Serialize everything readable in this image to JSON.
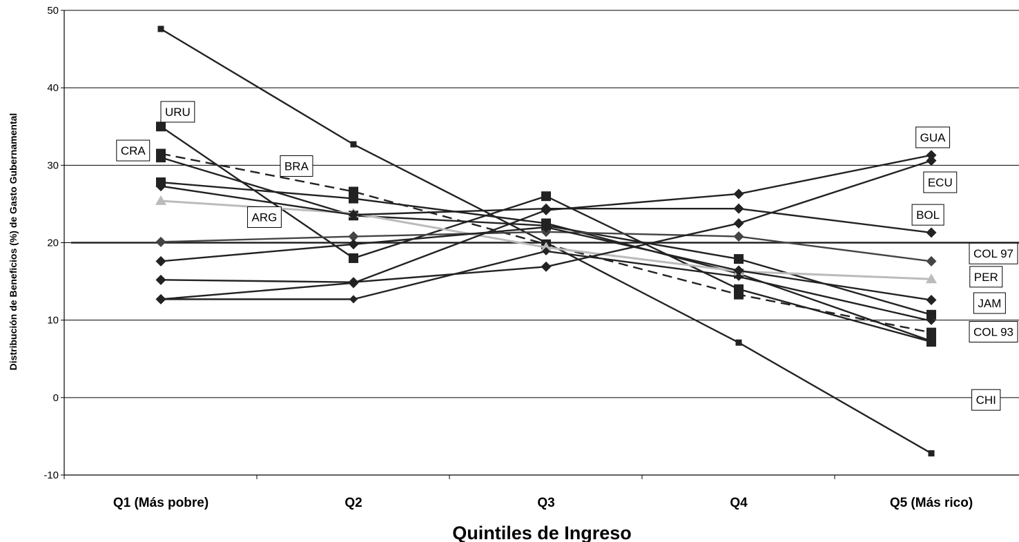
{
  "chart_data": {
    "type": "line",
    "title": "",
    "xlabel": "Quintiles de Ingreso",
    "ylabel": "Distribución de Beneficios (%) de Gasto Gubernamental",
    "categories": [
      "Q1 (Más pobre)",
      "Q2",
      "Q3",
      "Q4",
      "Q5 (Más rico)"
    ],
    "ylim": [
      -10,
      50
    ],
    "yticks": [
      -10,
      0,
      10,
      20,
      30,
      40,
      50
    ],
    "grid": true,
    "reference_line": 20,
    "series": [
      {
        "name": "CHI",
        "values": [
          47.6,
          32.7,
          20.0,
          7.1,
          -7.2
        ],
        "color": "#222222",
        "marker": "square-small",
        "dash": false
      },
      {
        "name": "URU",
        "values": [
          35.0,
          18.0,
          26.0,
          14.0,
          7.2
        ],
        "color": "#222222",
        "marker": "square",
        "dash": false
      },
      {
        "name": "CRA",
        "values": [
          31.5,
          26.6,
          19.8,
          13.3,
          8.4
        ],
        "color": "#222222",
        "marker": "square",
        "dash": true
      },
      {
        "name": "BRA",
        "values": [
          31.0,
          23.5,
          22.2,
          17.9,
          10.7
        ],
        "color": "#222222",
        "marker": "square",
        "dash": false
      },
      {
        "name": "ARG",
        "values": [
          27.8,
          25.7,
          22.5,
          16.0,
          7.3
        ],
        "color": "#222222",
        "marker": "square",
        "dash": false
      },
      {
        "name": "PER",
        "values": [
          25.4,
          23.8,
          19.4,
          16.3,
          15.3
        ],
        "color": "#bbbbbb",
        "marker": "triangle",
        "dash": false
      },
      {
        "name": "BOL",
        "values": [
          27.3,
          23.6,
          24.4,
          24.4,
          21.3
        ],
        "color": "#222222",
        "marker": "diamond",
        "dash": false
      },
      {
        "name": "COL 97",
        "values": [
          20.1,
          20.8,
          21.4,
          20.8,
          17.6
        ],
        "color": "#444444",
        "marker": "diamond",
        "dash": false
      },
      {
        "name": "GUA",
        "values": [
          12.7,
          14.8,
          24.2,
          26.3,
          31.3
        ],
        "color": "#222222",
        "marker": "diamond",
        "dash": false
      },
      {
        "name": "ECU",
        "values": [
          15.2,
          14.9,
          16.9,
          22.5,
          30.6
        ],
        "color": "#222222",
        "marker": "diamond",
        "dash": false
      },
      {
        "name": "JAM",
        "values": [
          17.6,
          19.8,
          22.0,
          16.4,
          12.6
        ],
        "color": "#222222",
        "marker": "diamond",
        "dash": false
      },
      {
        "name": "COL 93",
        "values": [
          12.7,
          12.7,
          18.9,
          15.6,
          9.9
        ],
        "color": "#222222",
        "marker": "diamond-small",
        "dash": false
      }
    ],
    "annotations": [
      {
        "text": "URU",
        "x": 0,
        "y": 36.9
      },
      {
        "text": "CRA",
        "x": -0.23,
        "y": 31.9
      },
      {
        "text": "BRA",
        "x": 0.62,
        "y": 29.9
      },
      {
        "text": "ARG",
        "x": 0.45,
        "y": 23.3
      },
      {
        "text": "GUA",
        "x": 3.92,
        "y": 33.6
      },
      {
        "text": "ECU",
        "x": 3.96,
        "y": 27.8
      },
      {
        "text": "BOL",
        "x": 3.9,
        "y": 23.6
      },
      {
        "text": "COL 97",
        "x": 4.24,
        "y": 18.6
      },
      {
        "text": "PER",
        "x": 4.2,
        "y": 15.6
      },
      {
        "text": "JAM",
        "x": 4.22,
        "y": 12.2
      },
      {
        "text": "COL 93",
        "x": 4.24,
        "y": 8.5
      },
      {
        "text": "CHI",
        "x": 4.21,
        "y": -0.3
      }
    ]
  }
}
